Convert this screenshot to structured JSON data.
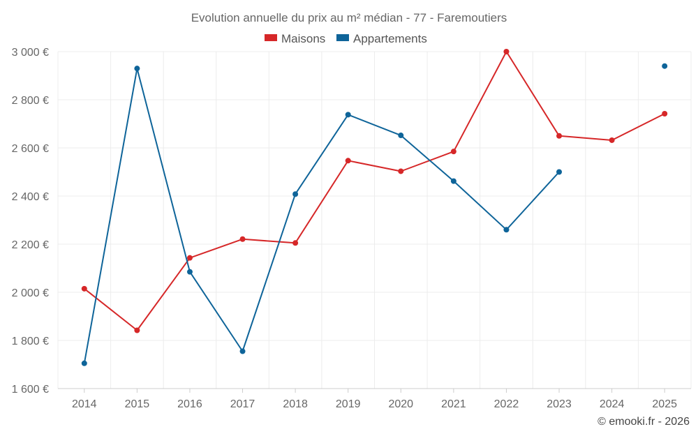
{
  "chart_data": {
    "type": "line",
    "title": "Evolution annuelle du prix au m² médian - 77 - Faremoutiers",
    "categories": [
      "2014",
      "2015",
      "2016",
      "2017",
      "2018",
      "2019",
      "2020",
      "2021",
      "2022",
      "2023",
      "2024",
      "2025"
    ],
    "y_ticks": [
      "1 600 €",
      "1 800 €",
      "2 000 €",
      "2 200 €",
      "2 400 €",
      "2 600 €",
      "2 800 €",
      "3 000 €"
    ],
    "ylim": [
      1600,
      3000
    ],
    "grid": true,
    "legend_position": "top-center",
    "series": [
      {
        "name": "Maisons",
        "color": "#d62728",
        "values": [
          2015,
          1842,
          2143,
          2221,
          2205,
          2547,
          2503,
          2585,
          3000,
          2650,
          2632,
          2742
        ]
      },
      {
        "name": "Appartements",
        "color": "#0e6499",
        "values": [
          1705,
          2930,
          2085,
          1755,
          2408,
          2738,
          2652,
          2462,
          2260,
          2500,
          null,
          2940
        ]
      }
    ],
    "credit": "© emooki.fr - 2026"
  }
}
